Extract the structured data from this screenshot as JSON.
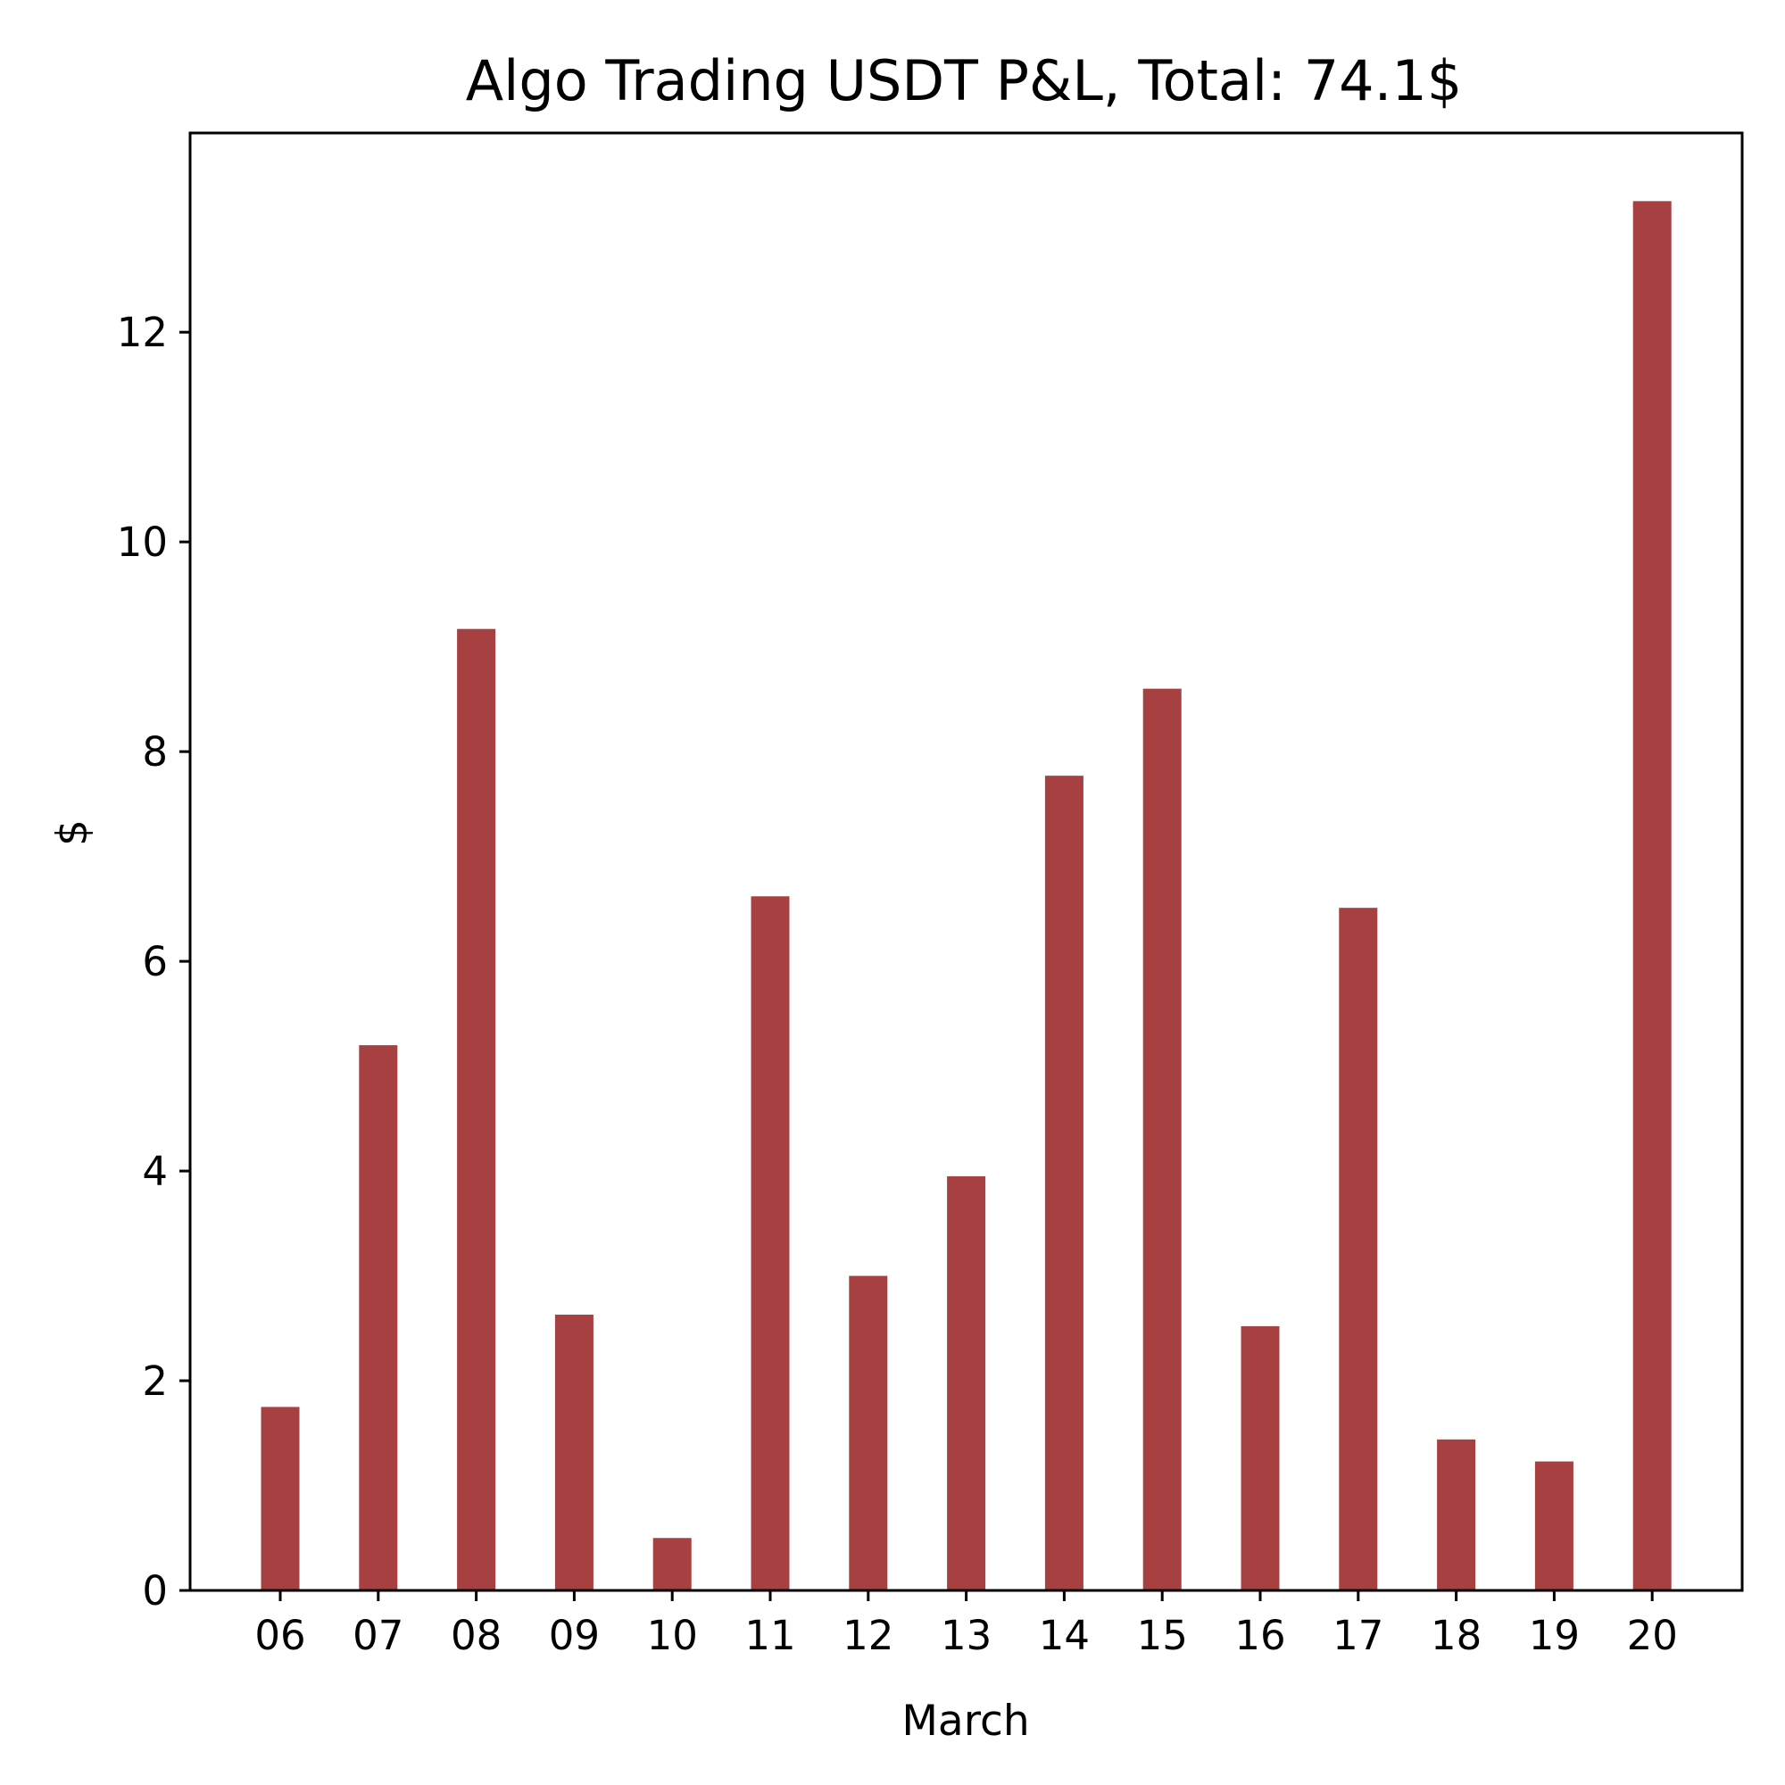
{
  "chart_data": {
    "type": "bar",
    "title": "Algo Trading USDT P&L, Total: 74.1$",
    "xlabel": "March",
    "ylabel": "$",
    "categories": [
      "06",
      "07",
      "08",
      "09",
      "10",
      "11",
      "12",
      "13",
      "14",
      "15",
      "16",
      "17",
      "18",
      "19",
      "20"
    ],
    "values": [
      1.75,
      5.2,
      9.17,
      2.63,
      0.5,
      6.62,
      3.0,
      3.95,
      7.77,
      8.6,
      2.52,
      6.51,
      1.44,
      1.23,
      13.25
    ],
    "ylim": [
      0,
      13.9
    ],
    "yticks": [
      0,
      2,
      4,
      6,
      8,
      10,
      12
    ],
    "grid": false,
    "legend": "none",
    "bar_color": "#a64041"
  }
}
